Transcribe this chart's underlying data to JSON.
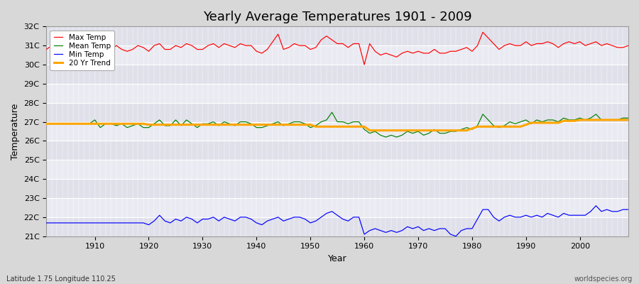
{
  "title": "Yearly Average Temperatures 1901 - 2009",
  "xlabel": "Year",
  "ylabel": "Temperature",
  "lat_lon_label": "Latitude 1.75 Longitude 110.25",
  "watermark": "worldspecies.org",
  "years": [
    1901,
    1902,
    1903,
    1904,
    1905,
    1906,
    1907,
    1908,
    1909,
    1910,
    1911,
    1912,
    1913,
    1914,
    1915,
    1916,
    1917,
    1918,
    1919,
    1920,
    1921,
    1922,
    1923,
    1924,
    1925,
    1926,
    1927,
    1928,
    1929,
    1930,
    1931,
    1932,
    1933,
    1934,
    1935,
    1936,
    1937,
    1938,
    1939,
    1940,
    1941,
    1942,
    1943,
    1944,
    1945,
    1946,
    1947,
    1948,
    1949,
    1950,
    1951,
    1952,
    1953,
    1954,
    1955,
    1956,
    1957,
    1958,
    1959,
    1960,
    1961,
    1962,
    1963,
    1964,
    1965,
    1966,
    1967,
    1968,
    1969,
    1970,
    1971,
    1972,
    1973,
    1974,
    1975,
    1976,
    1977,
    1978,
    1979,
    1980,
    1981,
    1982,
    1983,
    1984,
    1985,
    1986,
    1987,
    1988,
    1989,
    1990,
    1991,
    1992,
    1993,
    1994,
    1995,
    1996,
    1997,
    1998,
    1999,
    2000,
    2001,
    2002,
    2003,
    2004,
    2005,
    2006,
    2007,
    2008,
    2009
  ],
  "max_temp": [
    30.8,
    31.0,
    31.1,
    30.9,
    30.8,
    31.1,
    30.7,
    30.9,
    31.2,
    31.1,
    30.9,
    30.7,
    30.8,
    31.0,
    30.8,
    30.7,
    30.8,
    31.0,
    30.9,
    30.7,
    31.0,
    31.1,
    30.8,
    30.8,
    31.0,
    30.9,
    31.1,
    31.0,
    30.8,
    30.8,
    31.0,
    31.1,
    30.9,
    31.1,
    31.0,
    30.9,
    31.1,
    31.0,
    31.0,
    30.7,
    30.6,
    30.8,
    31.2,
    31.6,
    30.8,
    30.9,
    31.1,
    31.0,
    31.0,
    30.8,
    30.9,
    31.3,
    31.5,
    31.3,
    31.1,
    31.1,
    30.9,
    31.1,
    31.1,
    30.0,
    31.1,
    30.7,
    30.5,
    30.6,
    30.5,
    30.4,
    30.6,
    30.7,
    30.6,
    30.7,
    30.6,
    30.6,
    30.8,
    30.6,
    30.6,
    30.7,
    30.7,
    30.8,
    30.9,
    30.7,
    31.0,
    31.7,
    31.4,
    31.1,
    30.8,
    31.0,
    31.1,
    31.0,
    31.0,
    31.2,
    31.0,
    31.1,
    31.1,
    31.2,
    31.1,
    30.9,
    31.1,
    31.2,
    31.1,
    31.2,
    31.0,
    31.1,
    31.2,
    31.0,
    31.1,
    31.0,
    30.9,
    30.9,
    31.0
  ],
  "mean_temp": [
    26.9,
    26.9,
    26.9,
    26.9,
    26.9,
    26.9,
    26.9,
    26.9,
    26.9,
    27.1,
    26.7,
    26.9,
    26.9,
    26.8,
    26.9,
    26.7,
    26.8,
    26.9,
    26.7,
    26.7,
    26.9,
    27.1,
    26.8,
    26.8,
    27.1,
    26.8,
    27.1,
    26.9,
    26.7,
    26.9,
    26.9,
    27.0,
    26.8,
    27.0,
    26.9,
    26.8,
    27.0,
    27.0,
    26.9,
    26.7,
    26.7,
    26.8,
    26.9,
    27.0,
    26.8,
    26.9,
    27.0,
    27.0,
    26.9,
    26.7,
    26.8,
    27.0,
    27.1,
    27.5,
    27.0,
    27.0,
    26.9,
    27.0,
    27.0,
    26.6,
    26.4,
    26.5,
    26.3,
    26.2,
    26.3,
    26.2,
    26.3,
    26.5,
    26.4,
    26.5,
    26.3,
    26.4,
    26.6,
    26.4,
    26.4,
    26.5,
    26.5,
    26.6,
    26.7,
    26.6,
    26.8,
    27.4,
    27.1,
    26.8,
    26.7,
    26.8,
    27.0,
    26.9,
    27.0,
    27.1,
    26.9,
    27.1,
    27.0,
    27.1,
    27.1,
    27.0,
    27.2,
    27.1,
    27.1,
    27.2,
    27.1,
    27.2,
    27.4,
    27.1,
    27.1,
    27.1,
    27.1,
    27.2,
    27.2
  ],
  "min_temp": [
    21.7,
    21.7,
    21.7,
    21.7,
    21.7,
    21.7,
    21.7,
    21.7,
    21.7,
    21.7,
    21.7,
    21.7,
    21.7,
    21.7,
    21.7,
    21.7,
    21.7,
    21.7,
    21.7,
    21.6,
    21.8,
    22.1,
    21.8,
    21.7,
    21.9,
    21.8,
    22.0,
    21.9,
    21.7,
    21.9,
    21.9,
    22.0,
    21.8,
    22.0,
    21.9,
    21.8,
    22.0,
    22.0,
    21.9,
    21.7,
    21.6,
    21.8,
    21.9,
    22.0,
    21.8,
    21.9,
    22.0,
    22.0,
    21.9,
    21.7,
    21.8,
    22.0,
    22.2,
    22.3,
    22.1,
    21.9,
    21.8,
    22.0,
    22.0,
    21.1,
    21.3,
    21.4,
    21.3,
    21.2,
    21.3,
    21.2,
    21.3,
    21.5,
    21.4,
    21.5,
    21.3,
    21.4,
    21.3,
    21.4,
    21.4,
    21.1,
    21.0,
    21.3,
    21.4,
    21.4,
    21.9,
    22.4,
    22.4,
    22.0,
    21.8,
    22.0,
    22.1,
    22.0,
    22.0,
    22.1,
    22.0,
    22.1,
    22.0,
    22.2,
    22.1,
    22.0,
    22.2,
    22.1,
    22.1,
    22.1,
    22.1,
    22.3,
    22.6,
    22.3,
    22.4,
    22.3,
    22.3,
    22.4,
    22.4
  ],
  "trend_years": [
    1901,
    1902,
    1903,
    1904,
    1905,
    1906,
    1907,
    1908,
    1909,
    1910,
    1911,
    1912,
    1913,
    1914,
    1915,
    1916,
    1917,
    1918,
    1919,
    1920,
    1921,
    1922,
    1923,
    1924,
    1925,
    1926,
    1927,
    1928,
    1929,
    1930,
    1931,
    1932,
    1933,
    1934,
    1935,
    1936,
    1937,
    1938,
    1939,
    1940,
    1941,
    1942,
    1943,
    1944,
    1945,
    1946,
    1947,
    1948,
    1949,
    1950,
    1951,
    1952,
    1953,
    1954,
    1955,
    1956,
    1957,
    1958,
    1959,
    1960,
    1961,
    1962,
    1963,
    1964,
    1965,
    1966,
    1967,
    1968,
    1969,
    1970,
    1971,
    1972,
    1973,
    1974,
    1975,
    1976,
    1977,
    1978,
    1979,
    1980,
    1981,
    1982,
    1983,
    1984,
    1985,
    1986,
    1987,
    1988,
    1989,
    1990,
    1991,
    1992,
    1993,
    1994,
    1995,
    1996,
    1997,
    1998,
    1999,
    2000,
    2001,
    2002,
    2003,
    2004,
    2005,
    2006,
    2007,
    2008,
    2009
  ],
  "trend_vals": [
    26.9,
    26.9,
    26.9,
    26.9,
    26.9,
    26.9,
    26.9,
    26.9,
    26.9,
    26.9,
    26.9,
    26.9,
    26.9,
    26.9,
    26.9,
    26.9,
    26.9,
    26.9,
    26.9,
    26.85,
    26.85,
    26.85,
    26.85,
    26.85,
    26.85,
    26.85,
    26.85,
    26.85,
    26.85,
    26.85,
    26.85,
    26.85,
    26.85,
    26.85,
    26.85,
    26.85,
    26.85,
    26.85,
    26.85,
    26.85,
    26.85,
    26.85,
    26.85,
    26.85,
    26.85,
    26.85,
    26.85,
    26.85,
    26.85,
    26.85,
    26.75,
    26.75,
    26.75,
    26.75,
    26.75,
    26.75,
    26.75,
    26.75,
    26.75,
    26.75,
    26.55,
    26.55,
    26.55,
    26.55,
    26.55,
    26.55,
    26.55,
    26.55,
    26.55,
    26.55,
    26.55,
    26.55,
    26.55,
    26.55,
    26.55,
    26.55,
    26.55,
    26.55,
    26.55,
    26.65,
    26.75,
    26.75,
    26.75,
    26.75,
    26.75,
    26.75,
    26.75,
    26.75,
    26.75,
    26.85,
    26.95,
    26.95,
    26.95,
    26.95,
    26.95,
    26.95,
    27.05,
    27.05,
    27.05,
    27.1,
    27.1,
    27.1,
    27.1,
    27.1,
    27.1,
    27.1,
    27.1,
    27.1,
    27.1
  ],
  "max_color": "#ff0000",
  "mean_color": "#008000",
  "min_color": "#0000ff",
  "trend_color": "#ffa500",
  "fig_bg_color": "#d8d8d8",
  "plot_bg_color": "#e8e8f0",
  "grid_major_color": "#ffffff",
  "grid_minor_color": "#d0d0d8",
  "ylim_min": 21.0,
  "ylim_max": 32.0,
  "yticks": [
    21,
    22,
    23,
    24,
    25,
    26,
    27,
    28,
    29,
    30,
    31,
    32
  ],
  "ytick_labels": [
    "21C",
    "22C",
    "23C",
    "24C",
    "25C",
    "26C",
    "27C",
    "28C",
    "29C",
    "30C",
    "31C",
    "32C"
  ],
  "xticks": [
    1910,
    1920,
    1930,
    1940,
    1950,
    1960,
    1970,
    1980,
    1990,
    2000
  ],
  "xlim_min": 1901,
  "xlim_max": 2009
}
